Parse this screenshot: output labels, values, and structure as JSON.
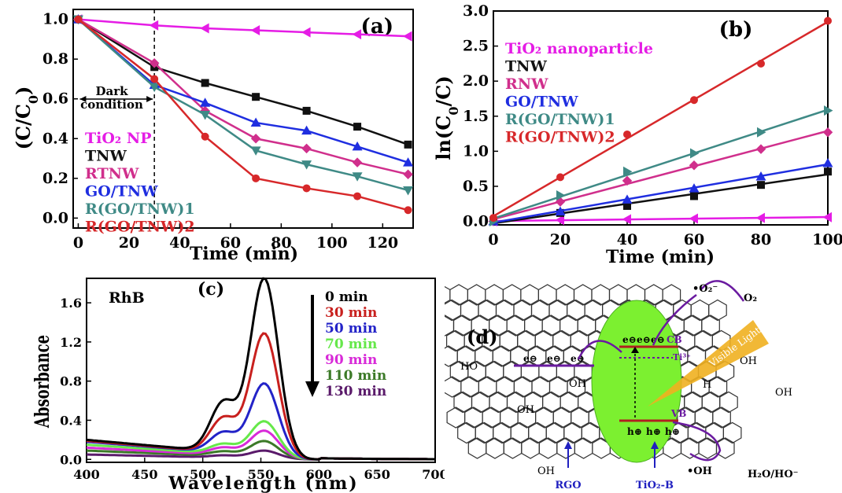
{
  "chart_data": [
    {
      "type": "line",
      "panel_label": "(a)",
      "xlabel": "Time (min)",
      "ylabel": "(C/C0)",
      "xlim": [
        -2,
        132
      ],
      "ylim": [
        -0.05,
        1.05
      ],
      "xticks": [
        0,
        20,
        40,
        60,
        80,
        100,
        120
      ],
      "yticks": [
        0.0,
        0.2,
        0.4,
        0.6,
        0.8,
        1.0
      ],
      "annotation": {
        "line1": "Dark",
        "line2": "condition",
        "x_marker": 30
      },
      "legend_position": "bottom-left",
      "series": [
        {
          "name": "TiO₂ NP",
          "color": "#e51ce5",
          "marker": "triangle-left",
          "x": [
            0,
            30,
            50,
            70,
            90,
            110,
            130
          ],
          "y": [
            1.0,
            0.97,
            0.955,
            0.945,
            0.935,
            0.925,
            0.915
          ]
        },
        {
          "name": "TNW",
          "color": "#111111",
          "marker": "square",
          "x": [
            0,
            30,
            50,
            70,
            90,
            110,
            130
          ],
          "y": [
            1.0,
            0.76,
            0.68,
            0.61,
            0.54,
            0.46,
            0.37
          ]
        },
        {
          "name": "RTNW",
          "color": "#d02f8c",
          "marker": "diamond",
          "x": [
            0,
            30,
            50,
            70,
            90,
            110,
            130
          ],
          "y": [
            1.0,
            0.78,
            0.54,
            0.4,
            0.35,
            0.28,
            0.22
          ]
        },
        {
          "name": "GO/TNW",
          "color": "#1f2ee0",
          "marker": "triangle-up",
          "x": [
            0,
            30,
            50,
            70,
            90,
            110,
            130
          ],
          "y": [
            1.0,
            0.67,
            0.58,
            0.48,
            0.44,
            0.36,
            0.28
          ]
        },
        {
          "name": "R(GO/TNW)1",
          "color": "#3f8a86",
          "marker": "triangle-down",
          "x": [
            0,
            30,
            50,
            70,
            90,
            110,
            130
          ],
          "y": [
            1.0,
            0.66,
            0.52,
            0.34,
            0.27,
            0.21,
            0.14
          ]
        },
        {
          "name": "R(GO/TNW)2",
          "color": "#d7282a",
          "marker": "circle",
          "x": [
            0,
            30,
            50,
            70,
            90,
            110,
            130
          ],
          "y": [
            1.0,
            0.7,
            0.41,
            0.2,
            0.15,
            0.11,
            0.04
          ]
        }
      ]
    },
    {
      "type": "scatter",
      "panel_label": "(b)",
      "xlabel": "Time (min)",
      "ylabel": "ln(C0/C)",
      "xlim": [
        0,
        100
      ],
      "ylim": [
        -0.05,
        3.0
      ],
      "xticks": [
        0,
        20,
        40,
        60,
        80,
        100
      ],
      "yticks": [
        0.0,
        0.5,
        1.0,
        1.5,
        2.0,
        2.5,
        3.0
      ],
      "fit_lines": true,
      "legend_position": "top-left",
      "series": [
        {
          "name": "TiO₂ nanoparticle",
          "color": "#e51ce5",
          "marker": "triangle-left",
          "x": [
            0,
            20,
            40,
            60,
            80,
            100
          ],
          "y": [
            0.0,
            0.02,
            0.03,
            0.04,
            0.05,
            0.06
          ]
        },
        {
          "name": "TNW",
          "color": "#111111",
          "marker": "square",
          "x": [
            0,
            20,
            40,
            60,
            80,
            100
          ],
          "y": [
            0.0,
            0.12,
            0.22,
            0.36,
            0.52,
            0.71
          ]
        },
        {
          "name": "RNW",
          "color": "#d02f8c",
          "marker": "diamond",
          "x": [
            0,
            20,
            40,
            60,
            80,
            100
          ],
          "y": [
            0.0,
            0.28,
            0.58,
            0.8,
            1.03,
            1.27
          ]
        },
        {
          "name": "GO/TNW",
          "color": "#1f2ee0",
          "marker": "triangle-up",
          "x": [
            0,
            20,
            40,
            60,
            80,
            100
          ],
          "y": [
            0.0,
            0.14,
            0.31,
            0.47,
            0.64,
            0.83
          ]
        },
        {
          "name": "R(GO/TNW)1",
          "color": "#3f8a86",
          "marker": "triangle-right",
          "x": [
            0,
            20,
            40,
            60,
            80,
            100
          ],
          "y": [
            0.0,
            0.37,
            0.71,
            0.97,
            1.27,
            1.58
          ]
        },
        {
          "name": "R(GO/TNW)2",
          "color": "#d7282a",
          "marker": "circle",
          "x": [
            0,
            20,
            40,
            60,
            80,
            100
          ],
          "y": [
            0.05,
            0.63,
            1.24,
            1.73,
            2.25,
            2.86
          ]
        }
      ]
    },
    {
      "type": "line",
      "panel_label": "(c)",
      "title": "RhB",
      "xlabel": "Wavelength (nm)",
      "ylabel": "Absorbance",
      "xlim": [
        400,
        700
      ],
      "ylim": [
        -0.03,
        1.85
      ],
      "xticks": [
        400,
        450,
        500,
        550,
        600,
        650,
        700
      ],
      "yticks": [
        0.0,
        0.4,
        0.8,
        1.2,
        1.6
      ],
      "legend_position": "top-right",
      "arrow": "downward",
      "series": [
        {
          "name": "0 min",
          "color": "#000000",
          "peak": 1.81,
          "base": 0.2
        },
        {
          "name": "30 min",
          "color": "#c8201e",
          "peak": 1.25,
          "base": 0.19
        },
        {
          "name": "50 min",
          "color": "#2323c8",
          "peak": 0.74,
          "base": 0.18
        },
        {
          "name": "70 min",
          "color": "#66e84a",
          "peak": 0.36,
          "base": 0.15
        },
        {
          "name": "90 min",
          "color": "#d82ad8",
          "peak": 0.27,
          "base": 0.12
        },
        {
          "name": "110 min",
          "color": "#3c7a28",
          "peak": 0.17,
          "base": 0.09
        },
        {
          "name": "130 min",
          "color": "#5a1a6a",
          "peak": 0.08,
          "base": 0.05
        }
      ]
    }
  ],
  "diagram": {
    "label": "(d)",
    "rgo_label": "RGO",
    "tio2_label": "TiO₂-B",
    "cb_label": "CB",
    "vb_label": "VB",
    "ti3_label": "Ti³⁺",
    "visible_light_label": "Visible Light",
    "o2_radical": "•O₂⁻",
    "o2": "O₂",
    "oh_radical": "•OH",
    "h2o": "H₂O/HO⁻",
    "electron": "e⊖",
    "hole": "h⊕",
    "oh_group": "OH",
    "ho_group": "HO",
    "h_label": "H",
    "colors": {
      "ellipse": "#7cf030",
      "band": "#b02020",
      "arrow": "#6a1aa0",
      "light": "#f0b020",
      "label": "#2020c0"
    }
  }
}
